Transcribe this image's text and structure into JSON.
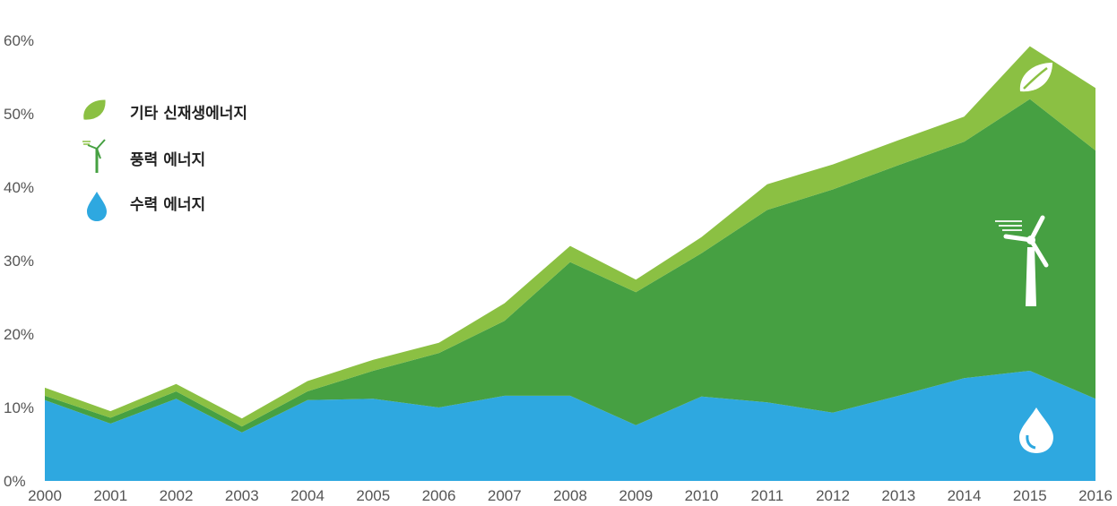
{
  "chart_data": {
    "type": "area",
    "stacked": true,
    "x": [
      2000,
      2001,
      2002,
      2003,
      2004,
      2005,
      2006,
      2007,
      2008,
      2009,
      2010,
      2011,
      2012,
      2013,
      2014,
      2015,
      2016
    ],
    "x_tick_labels": [
      "2000",
      "2001",
      "2002",
      "2003",
      "2004",
      "2005",
      "2006",
      "2007",
      "2008",
      "2009",
      "2010",
      "2011",
      "2012",
      "2013",
      "2014",
      "2015",
      "2016"
    ],
    "y_tick_labels": [
      "0%",
      "10%",
      "20%",
      "30%",
      "40%",
      "50%",
      "60%"
    ],
    "ylim": [
      0,
      60
    ],
    "xlim": [
      2000,
      2016
    ],
    "grid": false,
    "legend_position": "top-left",
    "series": [
      {
        "name": "수력 에너지",
        "color": "#2ea8e0",
        "icon": "water-drop-icon",
        "values": [
          11.0,
          7.8,
          11.2,
          6.6,
          11.0,
          11.2,
          10.0,
          11.6,
          11.6,
          7.6,
          11.5,
          10.7,
          9.3,
          11.6,
          14.0,
          15.0,
          11.2
        ]
      },
      {
        "name": "풍력 에너지",
        "color": "#46a042",
        "icon": "wind-turbine-icon",
        "values": [
          0.6,
          0.8,
          1.0,
          0.8,
          1.2,
          3.8,
          7.4,
          10.2,
          18.2,
          18.1,
          19.5,
          26.2,
          30.4,
          31.4,
          32.2,
          37.0,
          33.8
        ]
      },
      {
        "name": "기타 신재생에너지",
        "color": "#8bc043",
        "icon": "leaf-icon",
        "values": [
          1.1,
          0.9,
          1.0,
          1.1,
          1.4,
          1.5,
          1.4,
          2.4,
          2.2,
          1.7,
          2.2,
          3.5,
          3.4,
          3.4,
          3.4,
          7.2,
          8.5
        ]
      }
    ]
  }
}
